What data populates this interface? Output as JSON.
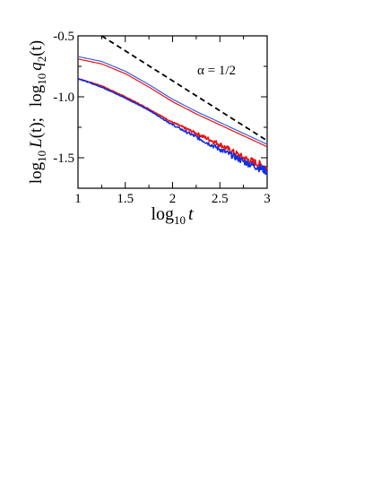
{
  "chart_data": {
    "type": "line",
    "xlabel": "log",
    "xlabel_sub": "10",
    "xlabel_var": "t",
    "ylabel_parts": {
      "a_log": "log",
      "a_sub": "10",
      "a_fn": "L",
      "a_arg": "(t);",
      "b_log": "log",
      "b_sub": "10",
      "b_fn": "q",
      "b_fsub": "2",
      "b_arg": "(t)"
    },
    "annotation": "α = 1/2",
    "xlim": [
      1,
      3
    ],
    "ylim": [
      -1.75,
      -0.5
    ],
    "xticks": [
      1,
      1.5,
      2,
      2.5,
      3
    ],
    "xtick_labels": [
      "1",
      "1.5",
      "2",
      "2.5",
      "3"
    ],
    "yticks": [
      -0.5,
      -1.0,
      -1.5
    ],
    "ytick_labels": [
      "-0.5",
      "-1.0",
      "-1.5"
    ],
    "grid": false,
    "series": [
      {
        "color": "#000000",
        "style": "dashed",
        "x": [
          1.25,
          3.0
        ],
        "y": [
          -0.5,
          -1.36
        ]
      },
      {
        "color": "#3a5fe0",
        "style": "solid",
        "x": [
          1.0,
          1.25,
          1.5,
          1.75,
          2.0,
          2.25,
          2.5,
          2.75,
          3.0
        ],
        "y": [
          -0.67,
          -0.71,
          -0.79,
          -0.9,
          -1.02,
          -1.12,
          -1.21,
          -1.3,
          -1.39
        ]
      },
      {
        "color": "#e81010",
        "style": "solid",
        "x": [
          1.0,
          1.25,
          1.5,
          1.75,
          2.0,
          2.25,
          2.5,
          2.75,
          3.0
        ],
        "y": [
          -0.69,
          -0.73,
          -0.81,
          -0.92,
          -1.04,
          -1.14,
          -1.23,
          -1.32,
          -1.41
        ]
      },
      {
        "color": "#e81010",
        "style": "noisy",
        "x": [
          1.0,
          1.25,
          1.5,
          1.75,
          2.0,
          2.25,
          2.5,
          2.75,
          3.0
        ],
        "y": [
          -0.85,
          -0.91,
          -1.0,
          -1.1,
          -1.21,
          -1.3,
          -1.39,
          -1.5,
          -1.58
        ]
      },
      {
        "color": "#1030e0",
        "style": "noisy",
        "x": [
          1.0,
          1.25,
          1.5,
          1.75,
          2.0,
          2.25,
          2.5,
          2.75,
          3.0
        ],
        "y": [
          -0.85,
          -0.92,
          -1.01,
          -1.11,
          -1.23,
          -1.33,
          -1.43,
          -1.53,
          -1.61
        ]
      }
    ]
  }
}
